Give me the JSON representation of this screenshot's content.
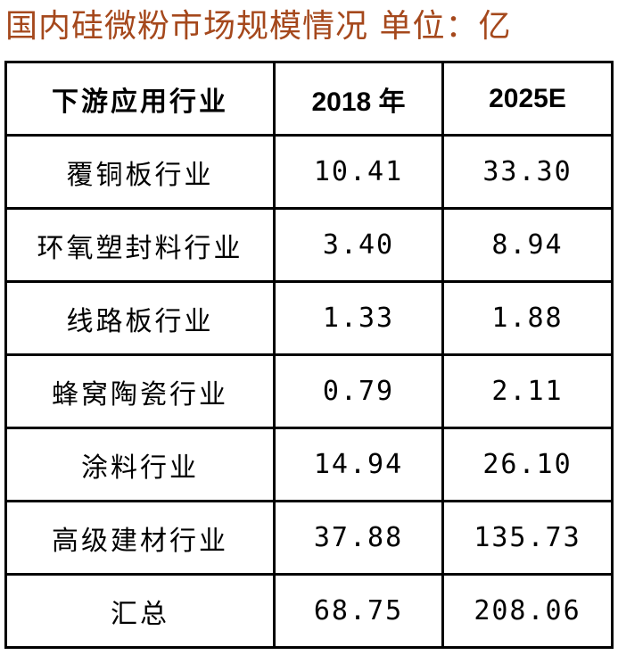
{
  "title": "国内硅微粉市场规模情况 单位：亿",
  "title_color": "#a5481c",
  "table": {
    "headers": [
      "下游应用行业",
      "2018 年",
      "2025E"
    ],
    "rows": [
      [
        "覆铜板行业",
        "10.41",
        "33.30"
      ],
      [
        "环氧塑封料行业",
        "3.40",
        "8.94"
      ],
      [
        "线路板行业",
        "1.33",
        "1.88"
      ],
      [
        "蜂窝陶瓷行业",
        "0.79",
        "2.11"
      ],
      [
        "涂料行业",
        "14.94",
        "26.10"
      ],
      [
        "高级建材行业",
        "37.88",
        "135.73"
      ],
      [
        "汇总",
        "68.75",
        "208.06"
      ]
    ]
  }
}
